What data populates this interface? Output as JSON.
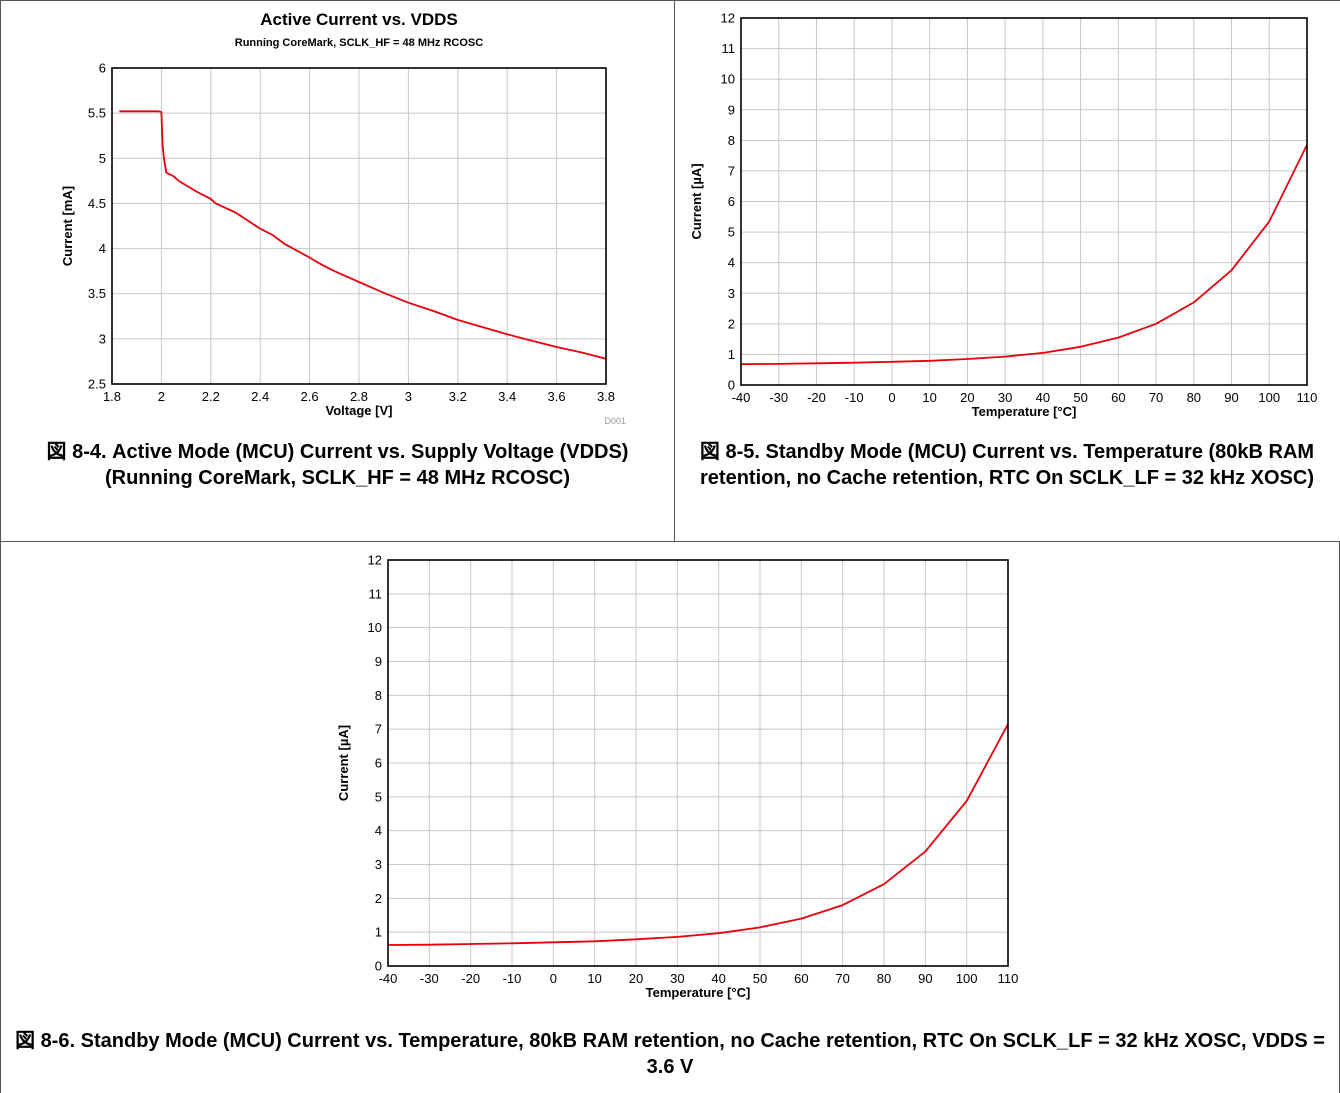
{
  "colors": {
    "series": "#e8000b",
    "grid": "#c8c8c8",
    "frame": "#000000"
  },
  "chart_data": [
    {
      "type": "line",
      "title": "Active Current vs. VDDS",
      "subtitle": "Running CoreMark, SCLK_HF = 48 MHz RCOSC",
      "xlabel": "Voltage [V]",
      "ylabel": "Current [mA]",
      "xlim": [
        1.8,
        3.8
      ],
      "ylim": [
        2.5,
        6
      ],
      "xticks": [
        1.8,
        2,
        2.2,
        2.4,
        2.6,
        2.8,
        3,
        3.2,
        3.4,
        3.6,
        3.8
      ],
      "xtick_labels": [
        "1.8",
        "2",
        "2.2",
        "2.4",
        "2.6",
        "2.8",
        "3",
        "3.2",
        "3.4",
        "3.6",
        "3.8"
      ],
      "yticks": [
        2.5,
        3,
        3.5,
        4,
        4.5,
        5,
        5.5,
        6
      ],
      "ytick_labels": [
        "2.5",
        "3",
        "3.5",
        "4",
        "4.5",
        "5",
        "5.5",
        "6"
      ],
      "grid": true,
      "reference_id": "D001",
      "series": [
        {
          "x": [
            1.83,
            1.9,
            1.95,
            1.99,
            2.0,
            2.005,
            2.01,
            2.02,
            2.05,
            2.07,
            2.1,
            2.15,
            2.2,
            2.22,
            2.3,
            2.4,
            2.45,
            2.5,
            2.6,
            2.65,
            2.7,
            2.8,
            2.9,
            3.0,
            3.1,
            3.2,
            3.3,
            3.4,
            3.5,
            3.6,
            3.7,
            3.8
          ],
          "y": [
            5.52,
            5.52,
            5.52,
            5.52,
            5.51,
            5.15,
            5.0,
            4.84,
            4.8,
            4.75,
            4.7,
            4.62,
            4.55,
            4.5,
            4.4,
            4.22,
            4.15,
            4.05,
            3.9,
            3.82,
            3.75,
            3.63,
            3.51,
            3.4,
            3.31,
            3.21,
            3.13,
            3.05,
            2.98,
            2.91,
            2.85,
            2.78
          ]
        }
      ]
    },
    {
      "type": "line",
      "xlabel": "Temperature [°C]",
      "ylabel": "Current [µA]",
      "xlim": [
        -40,
        110
      ],
      "ylim": [
        0,
        12
      ],
      "xticks": [
        -40,
        -30,
        -20,
        -10,
        0,
        10,
        20,
        30,
        40,
        50,
        60,
        70,
        80,
        90,
        100,
        110
      ],
      "xtick_labels": [
        "-40",
        "-30",
        "-20",
        "-10",
        "0",
        "10",
        "20",
        "30",
        "40",
        "50",
        "60",
        "70",
        "80",
        "90",
        "100",
        "110"
      ],
      "yticks": [
        0,
        1,
        2,
        3,
        4,
        5,
        6,
        7,
        8,
        9,
        10,
        11,
        12
      ],
      "ytick_labels": [
        "0",
        "1",
        "2",
        "3",
        "4",
        "5",
        "6",
        "7",
        "8",
        "9",
        "10",
        "11",
        "12"
      ],
      "grid": true,
      "series": [
        {
          "x": [
            -40,
            -30,
            -20,
            -10,
            0,
            10,
            20,
            30,
            40,
            50,
            60,
            70,
            80,
            90,
            100,
            110
          ],
          "y": [
            0.68,
            0.69,
            0.71,
            0.73,
            0.76,
            0.79,
            0.85,
            0.93,
            1.05,
            1.25,
            1.55,
            2.0,
            2.7,
            3.75,
            5.35,
            7.85
          ]
        }
      ]
    },
    {
      "type": "line",
      "xlabel": "Temperature [°C]",
      "ylabel": "Current [µA]",
      "xlim": [
        -40,
        110
      ],
      "ylim": [
        0,
        12
      ],
      "xticks": [
        -40,
        -30,
        -20,
        -10,
        0,
        10,
        20,
        30,
        40,
        50,
        60,
        70,
        80,
        90,
        100,
        110
      ],
      "xtick_labels": [
        "-40",
        "-30",
        "-20",
        "-10",
        "0",
        "10",
        "20",
        "30",
        "40",
        "50",
        "60",
        "70",
        "80",
        "90",
        "100",
        "110"
      ],
      "yticks": [
        0,
        1,
        2,
        3,
        4,
        5,
        6,
        7,
        8,
        9,
        10,
        11,
        12
      ],
      "ytick_labels": [
        "0",
        "1",
        "2",
        "3",
        "4",
        "5",
        "6",
        "7",
        "8",
        "9",
        "10",
        "11",
        "12"
      ],
      "grid": true,
      "series": [
        {
          "x": [
            -40,
            -30,
            -20,
            -10,
            0,
            10,
            20,
            30,
            40,
            50,
            60,
            70,
            80,
            90,
            100,
            110
          ],
          "y": [
            0.62,
            0.63,
            0.65,
            0.67,
            0.7,
            0.73,
            0.79,
            0.86,
            0.97,
            1.14,
            1.4,
            1.8,
            2.42,
            3.38,
            4.88,
            7.15
          ]
        }
      ]
    }
  ],
  "captions": [
    {
      "label": "図 8-4.",
      "text": "Active Mode (MCU) Current vs. Supply Voltage (VDDS) (Running CoreMark, SCLK_HF = 48 MHz RCOSC)"
    },
    {
      "label": "図 8-5.",
      "text": "Standby Mode (MCU) Current vs. Temperature (80kB RAM retention, no Cache retention, RTC On SCLK_LF = 32 kHz XOSC)"
    },
    {
      "label": "図 8-6.",
      "text": "Standby Mode (MCU) Current vs. Temperature, 80kB RAM retention, no Cache retention, RTC On SCLK_LF = 32 kHz XOSC, VDDS = 3.6 V"
    }
  ]
}
